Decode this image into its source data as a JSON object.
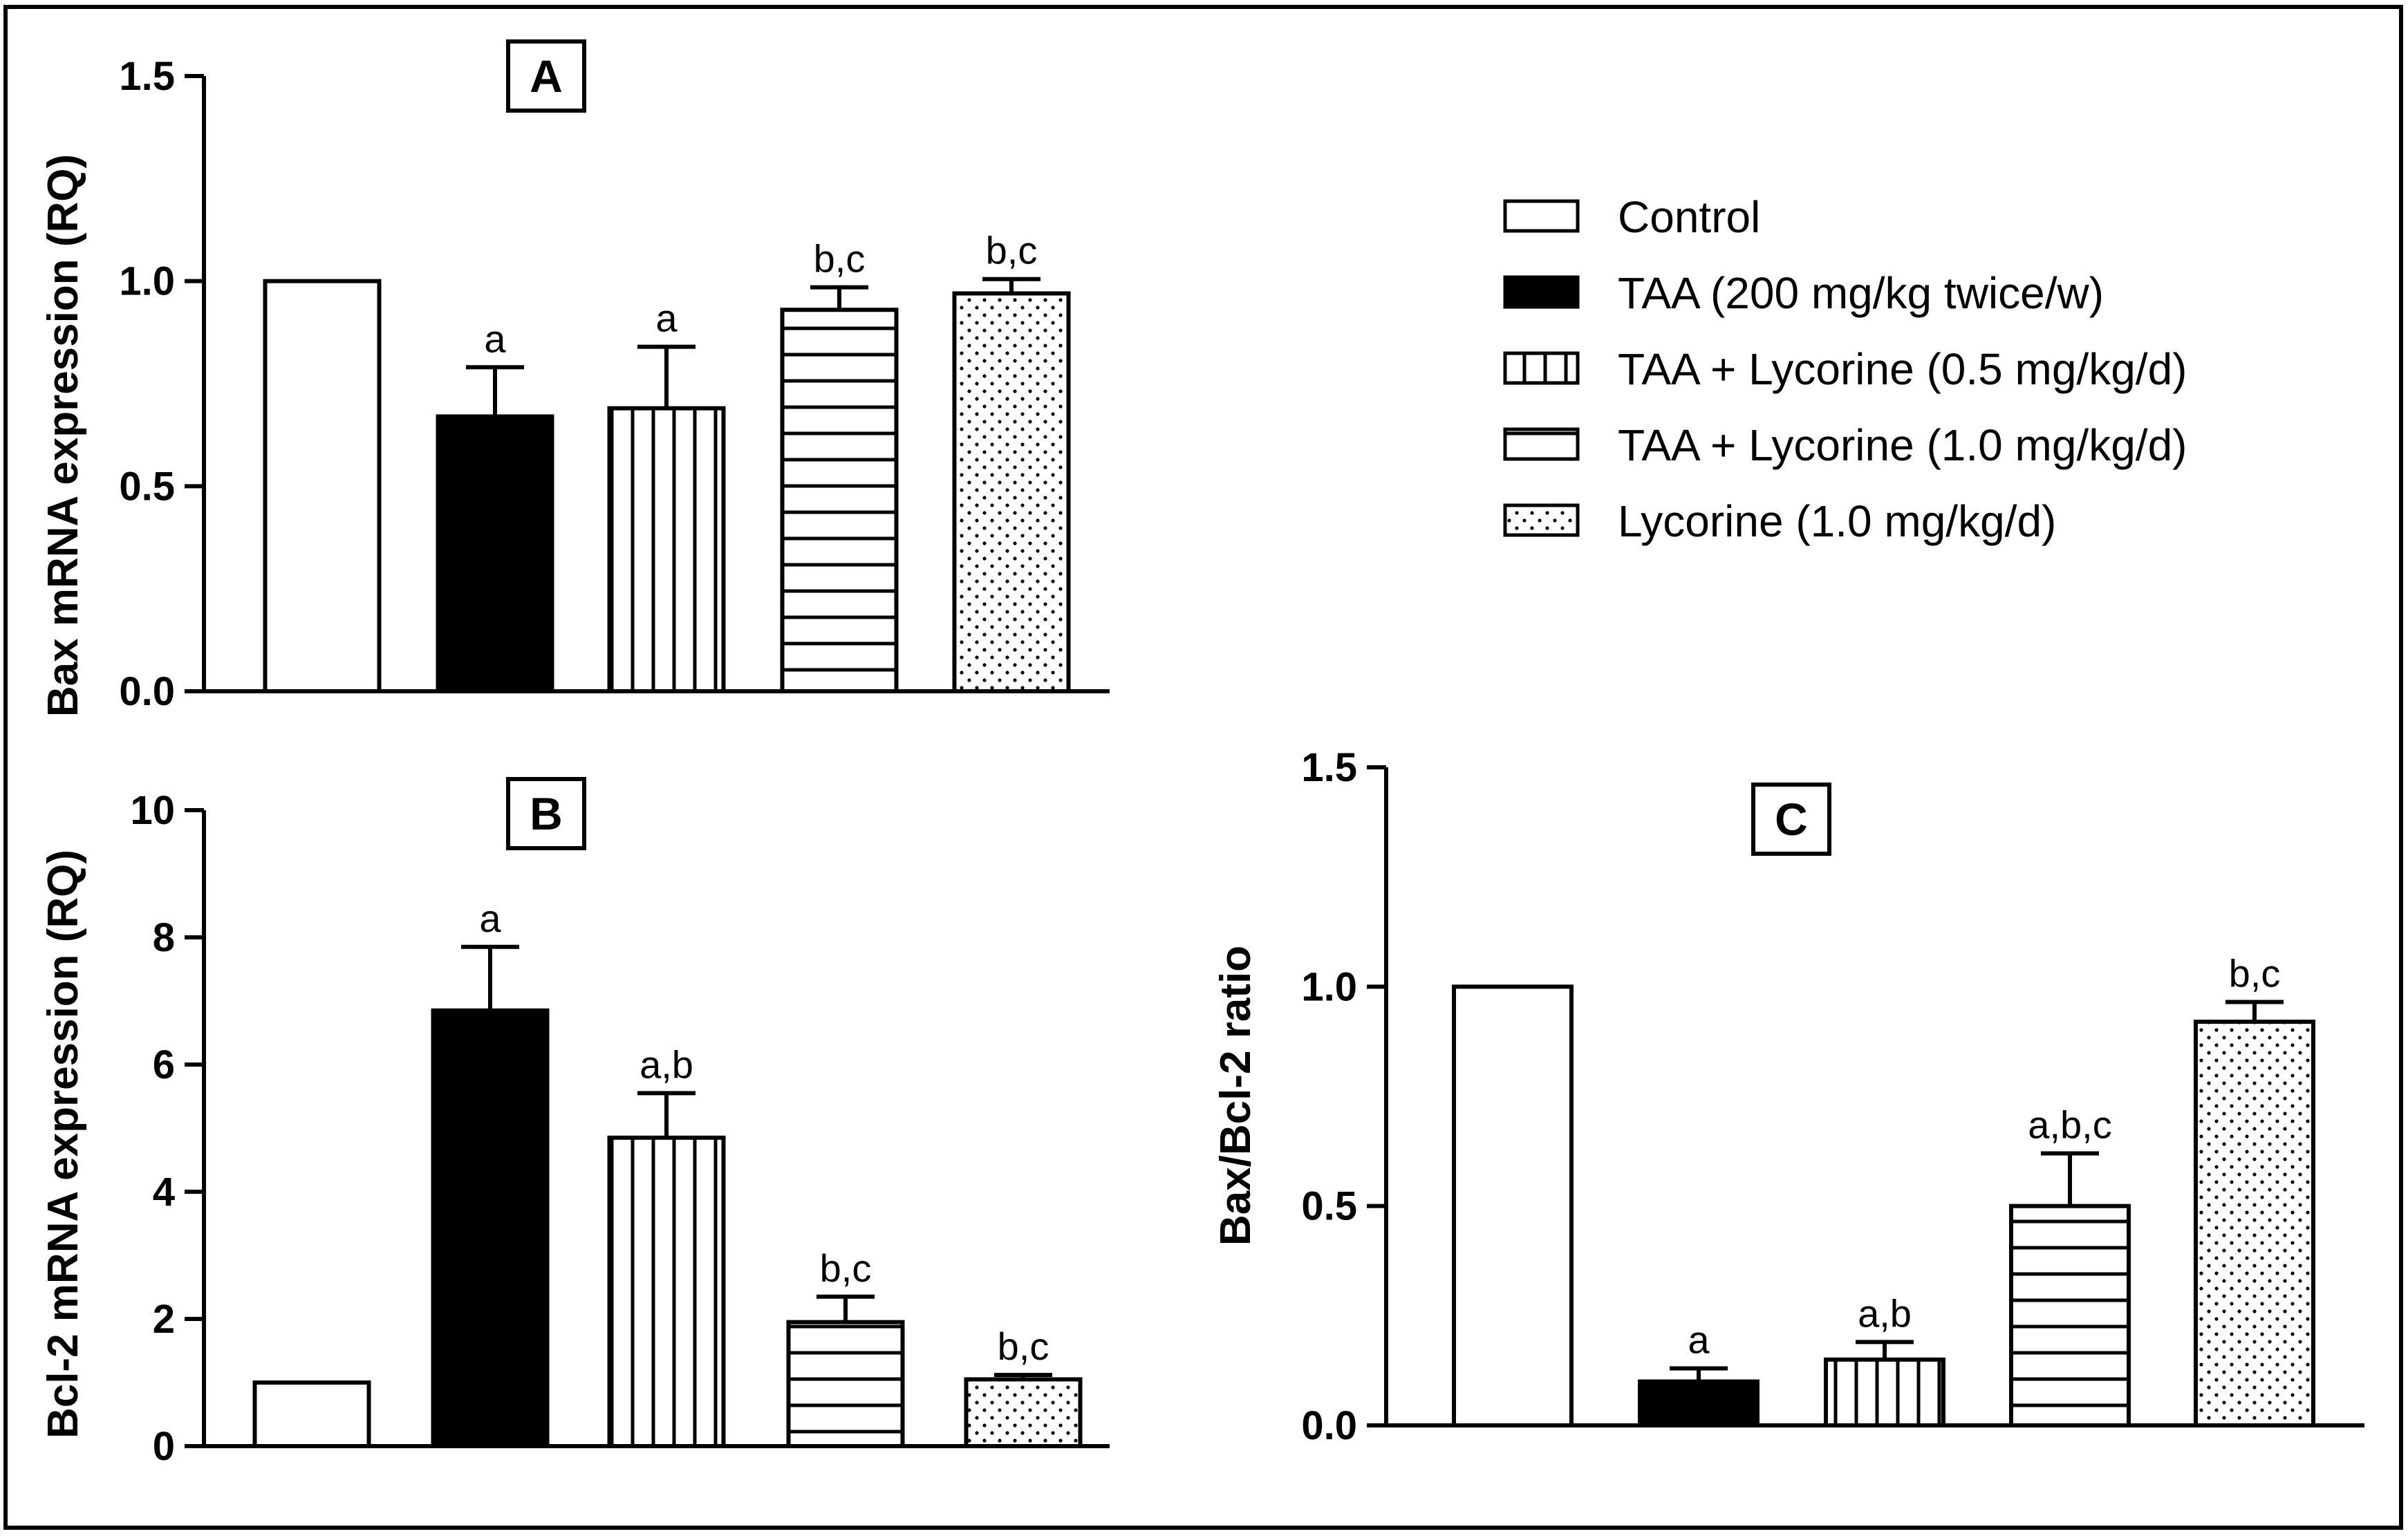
{
  "chart_data": [
    {
      "panel": "A",
      "type": "bar",
      "ylabel": "Bax mRNA expression (RQ)",
      "ylim": [
        0,
        1.5
      ],
      "yticks": [
        "0.0",
        "0.5",
        "1.0",
        "1.5"
      ],
      "categories": [
        "Control",
        "TAA (200 mg/kg twice/w)",
        "TAA + Lycorine (0.5 mg/kg/d)",
        "TAA + Lycorine (1.0 mg/kg/d)",
        "Lycorine (1.0 mg/kg/d)"
      ],
      "values": [
        1.0,
        0.67,
        0.69,
        0.93,
        0.97
      ],
      "errors": [
        0,
        0.12,
        0.15,
        0.055,
        0.035
      ],
      "annotations": [
        "",
        "a",
        "a",
        "b,c",
        "b,c"
      ]
    },
    {
      "panel": "B",
      "type": "bar",
      "ylabel": "Bcl-2 mRNA expression (RQ)",
      "ylim": [
        0,
        10
      ],
      "yticks": [
        "0",
        "2",
        "4",
        "6",
        "8",
        "10"
      ],
      "categories": [
        "Control",
        "TAA (200 mg/kg twice/w)",
        "TAA + Lycorine (0.5 mg/kg/d)",
        "TAA + Lycorine (1.0 mg/kg/d)",
        "Lycorine (1.0 mg/kg/d)"
      ],
      "values": [
        1.0,
        6.85,
        4.85,
        1.95,
        1.05
      ],
      "errors": [
        0,
        1.0,
        0.7,
        0.4,
        0.07
      ],
      "annotations": [
        "",
        "a",
        "a,b",
        "b,c",
        "b,c"
      ]
    },
    {
      "panel": "C",
      "type": "bar",
      "ylabel": "Bax/Bcl-2 ratio",
      "ylim": [
        0,
        1.5
      ],
      "yticks": [
        "0.0",
        "0.5",
        "1.0",
        "1.5"
      ],
      "categories": [
        "Control",
        "TAA (200 mg/kg twice/w)",
        "TAA + Lycorine (0.5 mg/kg/d)",
        "TAA + Lycorine (1.0 mg/kg/d)",
        "Lycorine (1.0 mg/kg/d)"
      ],
      "values": [
        1.0,
        0.1,
        0.15,
        0.5,
        0.92
      ],
      "errors": [
        0,
        0.03,
        0.04,
        0.12,
        0.045
      ],
      "annotations": [
        "",
        "a",
        "a,b",
        "a,b,c",
        "b,c"
      ]
    }
  ],
  "legend": {
    "entries": [
      {
        "label": "Control",
        "pattern": "open"
      },
      {
        "label": "TAA (200 mg/kg twice/w)",
        "pattern": "solid"
      },
      {
        "label": "TAA + Lycorine (0.5 mg/kg/d)",
        "pattern": "vertical"
      },
      {
        "label": "TAA + Lycorine (1.0 mg/kg/d)",
        "pattern": "horizontal"
      },
      {
        "label": "Lycorine (1.0 mg/kg/d)",
        "pattern": "dots"
      }
    ]
  }
}
